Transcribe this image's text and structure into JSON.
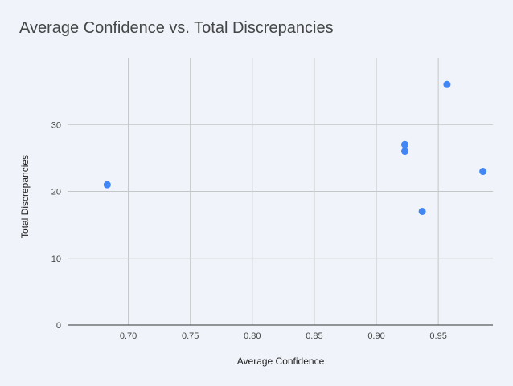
{
  "chart_data": {
    "type": "scatter",
    "title": "Average Confidence vs. Total Discrepancies",
    "xlabel": "Average Confidence",
    "ylabel": "Total Discrepancies",
    "xlim": [
      0.651,
      0.994
    ],
    "ylim": [
      0,
      40
    ],
    "x_ticks": [
      "0.70",
      "0.75",
      "0.80",
      "0.85",
      "0.90",
      "0.95"
    ],
    "y_ticks": [
      "0",
      "10",
      "20",
      "30"
    ],
    "grid": true,
    "point_color": "#4285f4",
    "series": [
      {
        "points": [
          {
            "x": 0.683,
            "y": 21
          },
          {
            "x": 0.923,
            "y": 27
          },
          {
            "x": 0.923,
            "y": 26
          },
          {
            "x": 0.937,
            "y": 17
          },
          {
            "x": 0.957,
            "y": 36
          },
          {
            "x": 0.986,
            "y": 23
          }
        ]
      }
    ]
  }
}
